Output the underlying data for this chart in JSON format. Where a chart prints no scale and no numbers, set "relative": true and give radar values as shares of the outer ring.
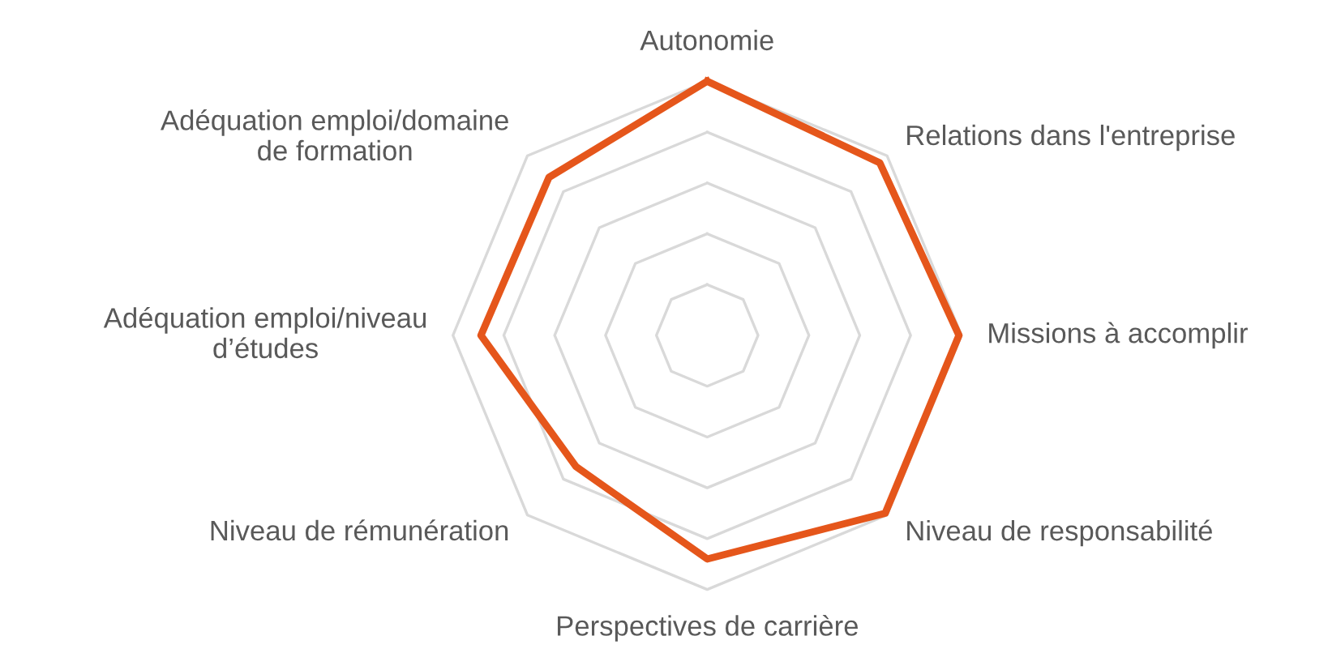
{
  "chart_data": {
    "type": "radar",
    "relative": true,
    "grid": true,
    "legend": false,
    "marker": "none",
    "line_style": "solid",
    "categories": [
      "Autonomie",
      "Relations dans l'entreprise",
      "Missions à accomplir",
      "Niveau de responsabilité",
      "Perspectives de carrière",
      "Niveau de rémunération",
      "Adéquation emploi/niveau\nd’études",
      "Adéquation emploi/domaine\nde formation"
    ],
    "series": [
      {
        "color": "#e5561b",
        "values": [
          1.0,
          0.96,
          0.99,
          0.99,
          0.88,
          0.73,
          0.89,
          0.88
        ]
      }
    ]
  }
}
